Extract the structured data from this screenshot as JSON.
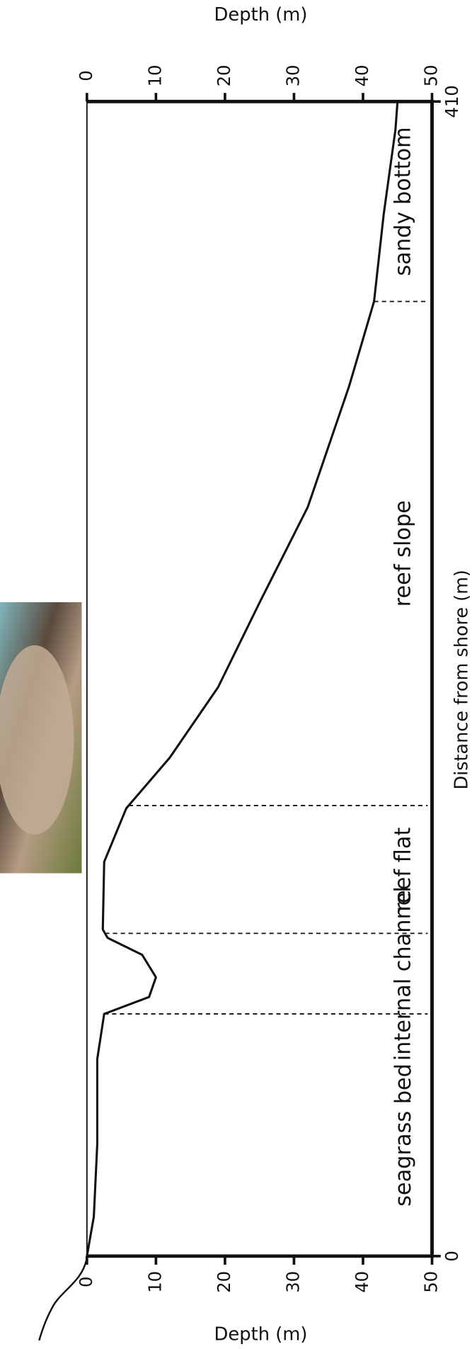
{
  "chart_data": {
    "type": "line",
    "x_label": "Distance from shore (m)",
    "y_label": "Depth (m)",
    "x": [
      0,
      14,
      40,
      70,
      86,
      92,
      99,
      107,
      113,
      116,
      140,
      159,
      177,
      202,
      232,
      266,
      309,
      339,
      370,
      400,
      410
    ],
    "values": [
      0,
      1,
      1.5,
      1.5,
      2.5,
      9,
      10,
      8,
      3,
      2.3,
      2.5,
      5.7,
      12,
      19,
      25,
      32,
      38,
      41.6,
      43,
      44.7,
      45
    ],
    "color": "#111111",
    "xlim": [
      0,
      410
    ],
    "xticks": [
      0,
      410
    ],
    "ylim": [
      0,
      50
    ],
    "yticks": [
      0,
      10,
      20,
      30,
      40,
      50
    ],
    "zone_boundaries": [
      86,
      114.6,
      160,
      339
    ],
    "zones": [
      "seagrass bed",
      "internal channel",
      "reef flat",
      "reef slope",
      "sandy bottom"
    ]
  }
}
